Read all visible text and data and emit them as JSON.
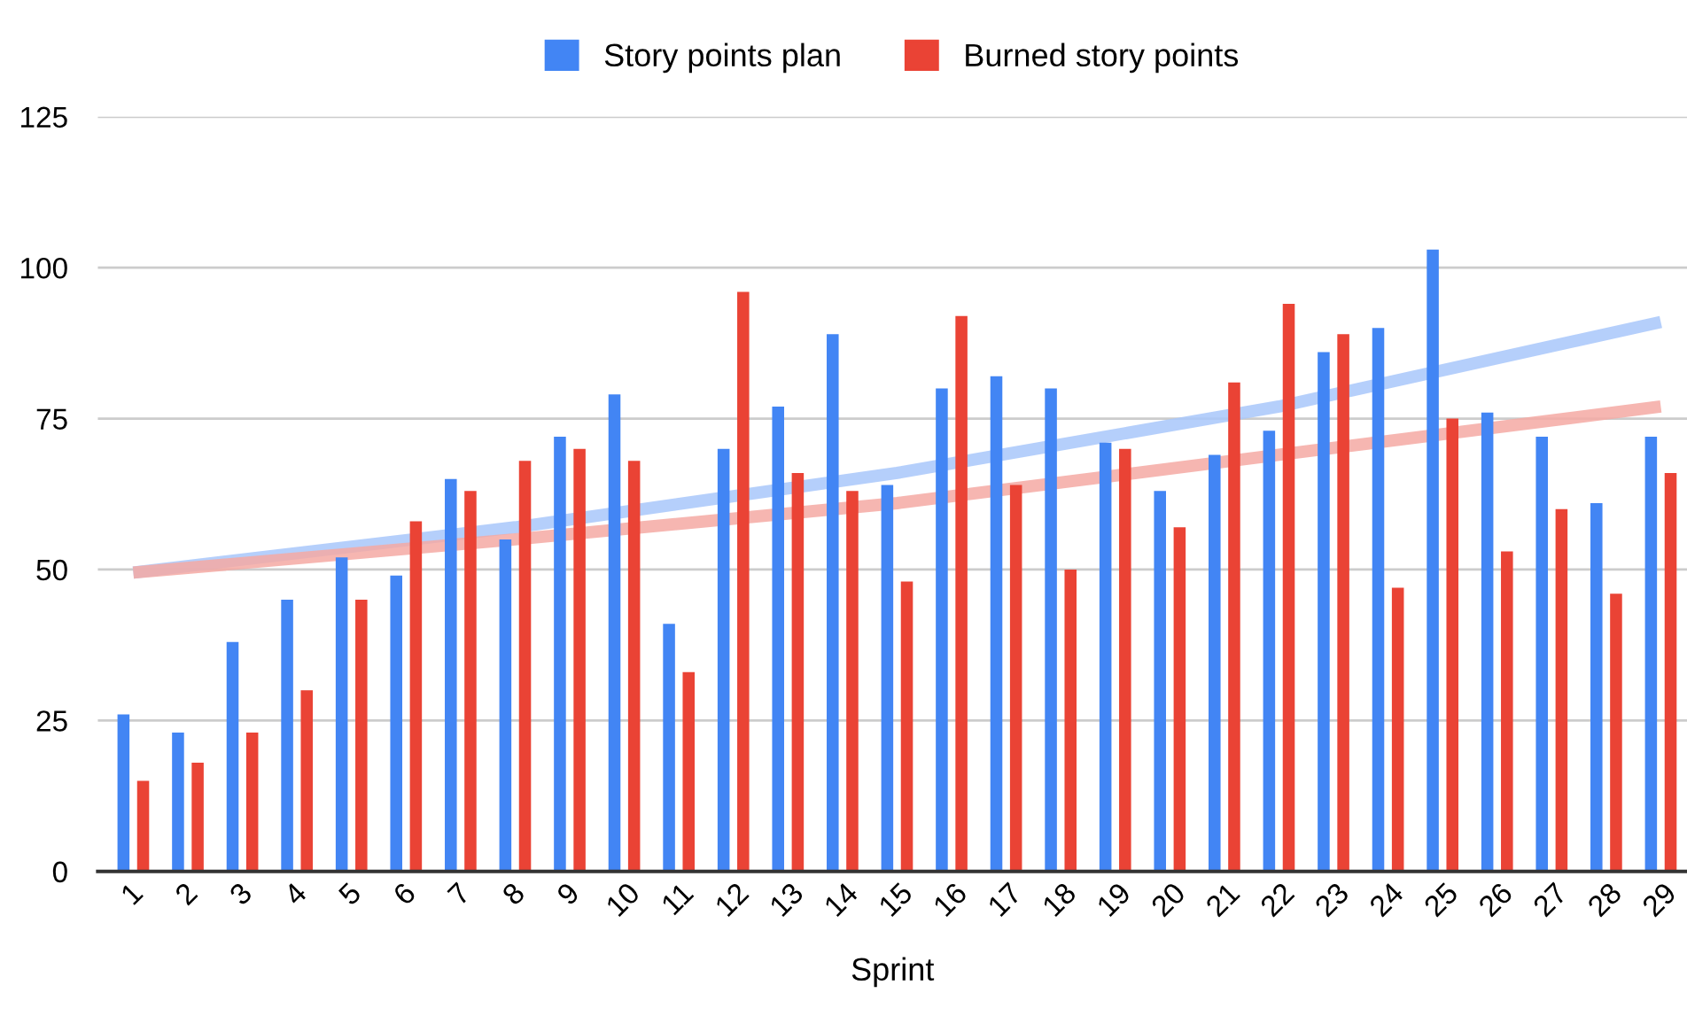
{
  "chart_data": {
    "type": "bar",
    "xlabel": "Sprint",
    "categories": [
      "1",
      "2",
      "3",
      "4",
      "5",
      "6",
      "7",
      "8",
      "9",
      "10",
      "11",
      "12",
      "13",
      "14",
      "15",
      "16",
      "17",
      "18",
      "19",
      "20",
      "21",
      "22",
      "23",
      "24",
      "25",
      "26",
      "27",
      "28",
      "29"
    ],
    "series": [
      {
        "name": "Story points plan",
        "color": "#4285f4",
        "values": [
          26,
          23,
          38,
          45,
          52,
          49,
          65,
          55,
          72,
          79,
          41,
          70,
          77,
          89,
          64,
          80,
          82,
          80,
          71,
          63,
          69,
          73,
          86,
          90,
          103,
          76,
          72,
          61,
          72
        ]
      },
      {
        "name": "Burned story points",
        "color": "#ea4335",
        "values": [
          15,
          18,
          23,
          30,
          45,
          58,
          63,
          68,
          70,
          68,
          33,
          96,
          66,
          63,
          48,
          92,
          64,
          50,
          70,
          57,
          81,
          94,
          89,
          47,
          75,
          53,
          60,
          46,
          66
        ]
      },
      {
        "type": "line",
        "color": "#a8c7fa",
        "x": [
          "1",
          "8",
          "15",
          "22",
          "29"
        ],
        "values": [
          49.5,
          57,
          66,
          77,
          91
        ]
      },
      {
        "type": "line",
        "color": "#f4a9a3",
        "x": [
          "1",
          "8",
          "15",
          "22",
          "29"
        ],
        "values": [
          49.5,
          55,
          61,
          69,
          77
        ]
      }
    ],
    "ylim": [
      0,
      125
    ],
    "yticks": [
      0,
      25,
      50,
      75,
      100,
      125
    ],
    "grid": "y",
    "legend": "top"
  }
}
